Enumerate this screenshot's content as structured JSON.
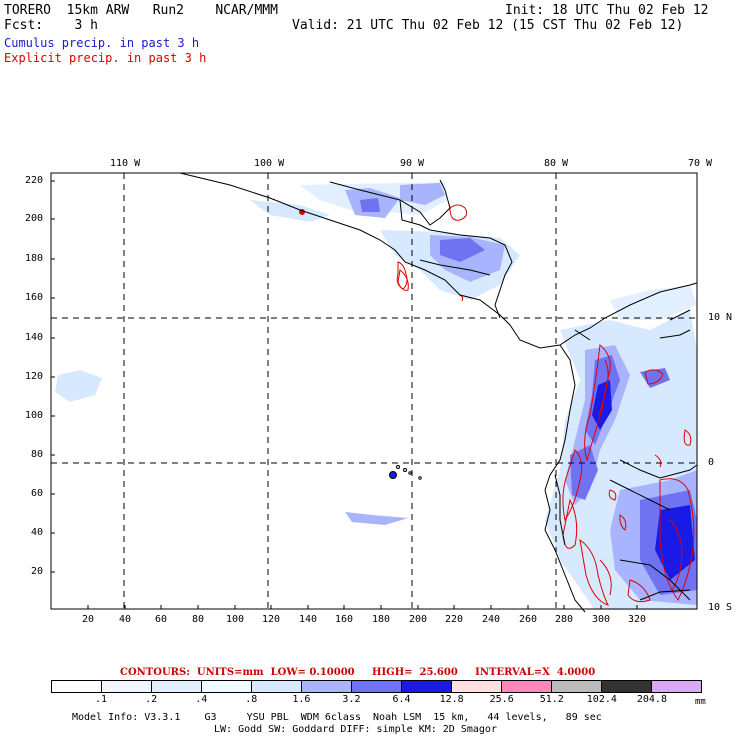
{
  "header": {
    "model": "TORERO  15km ARW   Run2    NCAR/MMM",
    "init": "Init: 18 UTC Thu 02 Feb 12",
    "fcst": "Fcst:    3 h",
    "valid": "Valid: 21 UTC Thu 02 Feb 12 (15 CST Thu 02 Feb 12)",
    "cumulus": "Cumulus precip. in past 3 h",
    "explicit": "Explicit precip. in past 3 h",
    "cumulus_color": "#1a1acc",
    "explicit_color": "#dd0000"
  },
  "map": {
    "lon_labels": [
      "110 W",
      "100 W",
      "90 W",
      "80 W",
      "70 W"
    ],
    "lat_labels": [
      "10 N",
      "0",
      "10 S"
    ],
    "y_ticks": [
      "220",
      "200",
      "180",
      "160",
      "140",
      "120",
      "100",
      "80",
      "60",
      "40",
      "20"
    ],
    "x_ticks": [
      "20",
      "40",
      "60",
      "80",
      "100",
      "120",
      "140",
      "160",
      "180",
      "200",
      "220",
      "240",
      "260",
      "280",
      "300",
      "320"
    ]
  },
  "contours": {
    "text": "CONTOURS:  UNITS=mm  LOW= 0.10000     HIGH=  25.600     INTERVAL=X  4.0000"
  },
  "colorbar": {
    "labels": [
      ".1",
      ".2",
      ".4",
      ".8",
      "1.6",
      "3.2",
      "6.4",
      "12.8",
      "25.6",
      "51.2",
      "102.4",
      "204.8"
    ],
    "colors": [
      "#ffffff",
      "#f2f7ff",
      "#e2efff",
      "#f0fbff",
      "#d7e9ff",
      "#a9b4ff",
      "#6f73f2",
      "#1a1ae6",
      "#ffe0e0",
      "#ff88bb",
      "#bbbbbb",
      "#333333",
      "#d9a8f7"
    ],
    "unit": "mm"
  },
  "footer": {
    "line1": "Model Info: V3.3.1    G3     YSU PBL  WDM 6class  Noah LSM  15 km,   44 levels,   89 sec",
    "line2": "LW: Godd SW: Goddard DIFF: simple KM: 2D Smagor"
  }
}
